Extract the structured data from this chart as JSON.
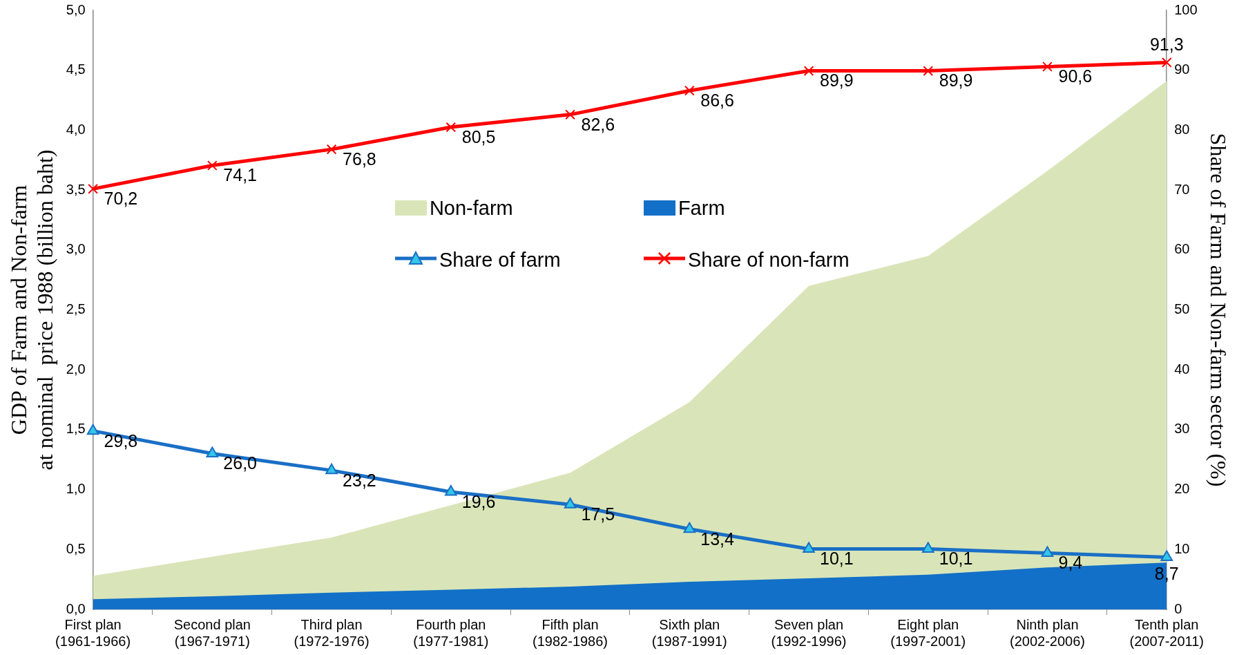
{
  "chart_data": {
    "type": "area",
    "xlabel": null,
    "ylabel": "GDP of Farm and Non-farm\nat nominal  price 1988 (billion baht)",
    "y2label": "Share of Farm and Non-farm sector (%)",
    "categories": [
      "First plan (1961-1966)",
      "Second plan (1967-1971)",
      "Third plan (1972-1976)",
      "Fourth plan (1977-1981)",
      "Fifth plan (1982-1986)",
      "Sixth plan (1987-1991)",
      "Seven plan (1992-1996)",
      "Eight plan (1997-2001)",
      "Ninth plan (2002-2006)",
      "Tenth plan (2007-2011)"
    ],
    "series": [
      {
        "name": "Non-farm",
        "color": "#d9e5b8",
        "values": [
          0.28,
          0.44,
          0.6,
          0.87,
          1.14,
          1.73,
          2.7,
          2.95,
          3.66,
          4.41
        ]
      },
      {
        "name": "Farm",
        "color": "#1270c8",
        "values": [
          0.085,
          0.11,
          0.14,
          0.165,
          0.19,
          0.23,
          0.26,
          0.29,
          0.35,
          0.39
        ]
      },
      {
        "name": "Share of farm",
        "type": "line",
        "axis": "y2",
        "color": "#1a6fc6",
        "marker": "triangle",
        "values": [
          29.8,
          26.0,
          23.2,
          19.6,
          17.5,
          13.4,
          10.1,
          10.1,
          9.4,
          8.7
        ],
        "value_labels": [
          "29,8",
          "26,0",
          "23,2",
          "19,6",
          "17,5",
          "13,4",
          "10,1",
          "10,1",
          "9,4",
          "8,7"
        ]
      },
      {
        "name": "Share of non-farm",
        "type": "line",
        "axis": "y2",
        "color": "#ff0000",
        "marker": "cross",
        "values": [
          70.2,
          74.1,
          76.8,
          80.5,
          82.6,
          86.6,
          89.9,
          89.9,
          90.6,
          91.3
        ],
        "value_labels": [
          "70,2",
          "74,1",
          "76,8",
          "80,5",
          "82,6",
          "86,6",
          "89,9",
          "89,9",
          "90,6",
          "91,3"
        ]
      }
    ],
    "ylim": [
      0,
      5
    ],
    "yticks": [
      {
        "value": 0,
        "label": "0,0"
      },
      {
        "value": 0.5,
        "label": "0,5"
      },
      {
        "value": 1,
        "label": "1,0"
      },
      {
        "value": 1.5,
        "label": "1,5"
      },
      {
        "value": 2,
        "label": "2,0"
      },
      {
        "value": 2.5,
        "label": "2,5"
      },
      {
        "value": 3,
        "label": "3,0"
      },
      {
        "value": 3.5,
        "label": "3,5"
      },
      {
        "value": 4,
        "label": "4,0"
      },
      {
        "value": 4.5,
        "label": "4,5"
      },
      {
        "value": 5,
        "label": "5,0"
      }
    ],
    "y2lim": [
      0,
      100
    ],
    "y2ticks": [
      0,
      10,
      20,
      30,
      40,
      50,
      60,
      70,
      80,
      90,
      100
    ],
    "legend": "center"
  }
}
